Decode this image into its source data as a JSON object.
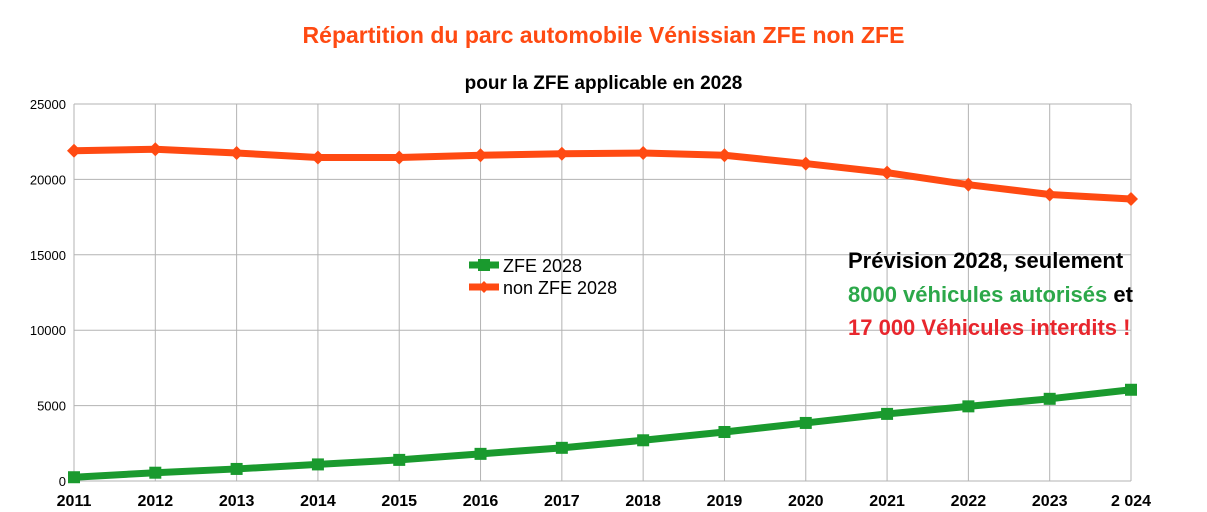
{
  "chart_data": {
    "type": "line",
    "title": "Répartition du parc automobile Vénissian ZFE non ZFE",
    "subtitle": "pour la ZFE applicable en 2028",
    "categories": [
      "2011",
      "2012",
      "2013",
      "2014",
      "2015",
      "2016",
      "2017",
      "2018",
      "2019",
      "2020",
      "2021",
      "2022",
      "2023",
      "2 024"
    ],
    "series": [
      {
        "name": "ZFE 2028",
        "color": "#1a9a2e",
        "values": [
          250,
          550,
          800,
          1100,
          1400,
          1800,
          2200,
          2700,
          3250,
          3850,
          4450,
          4950,
          5450,
          6050
        ]
      },
      {
        "name": "non ZFE 2028",
        "color": "#ff4a12",
        "values": [
          21900,
          22000,
          21750,
          21450,
          21450,
          21600,
          21700,
          21750,
          21600,
          21050,
          20450,
          19650,
          19000,
          18700
        ]
      }
    ],
    "ylim": [
      0,
      25000
    ],
    "yticks": [
      0,
      5000,
      10000,
      15000,
      20000,
      25000
    ],
    "grid": true,
    "legend_position": "center",
    "annotations": {
      "line1": "Prévision 2028, seulement",
      "line2_green": "8000 véhicules autorisés",
      "line2_rest": " et",
      "line3": "17 000 Véhicules interdits !"
    },
    "annotation_colors": {
      "line1": "#000000",
      "green": "#2ca84a",
      "red": "#e8262d"
    }
  }
}
